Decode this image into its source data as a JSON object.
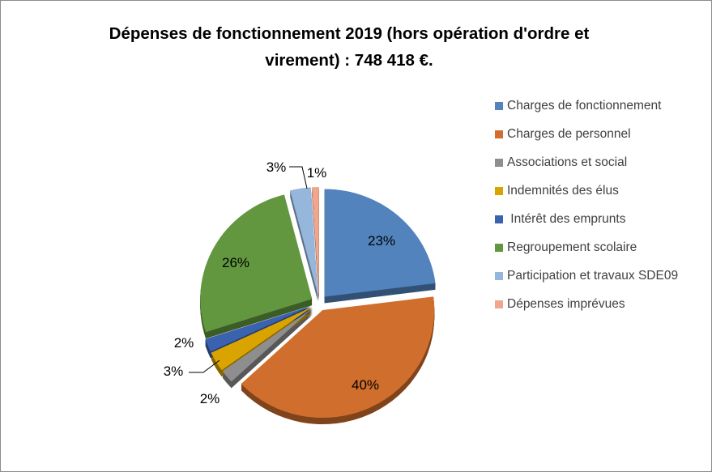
{
  "chart_data": {
    "type": "pie",
    "title": "Dépenses de fonctionnement 2019 (hors opération d'ordre et virement) : 748 418 €.",
    "title_lines": [
      "Dépenses de fonctionnement 2019 (hors opération d'ordre et",
      "virement) : 748 418 €."
    ],
    "legend_position": "right",
    "slices": [
      {
        "name": "Charges de fonctionnement",
        "value": 23,
        "label": "23%",
        "color": "#5283BD"
      },
      {
        "name": "Charges de personnel",
        "value": 40,
        "label": "40%",
        "color": "#D06E2E"
      },
      {
        "name": "Associations et social",
        "value": 2,
        "label": "2%",
        "color": "#8E8E8E"
      },
      {
        "name": "Indemnités des élus",
        "value": 3,
        "label": "3%",
        "color": "#D9A400"
      },
      {
        "name": " Intérêt des emprunts",
        "value": 2,
        "label": "2%",
        "color": "#3B62AE"
      },
      {
        "name": "Regroupement scolaire",
        "value": 26,
        "label": "26%",
        "color": "#62973F"
      },
      {
        "name": "Participation et travaux SDE09",
        "value": 3,
        "label": "3%",
        "color": "#96B6DC"
      },
      {
        "name": "Dépenses imprévues",
        "value": 1,
        "label": "1%",
        "color": "#EFA68C"
      }
    ]
  }
}
